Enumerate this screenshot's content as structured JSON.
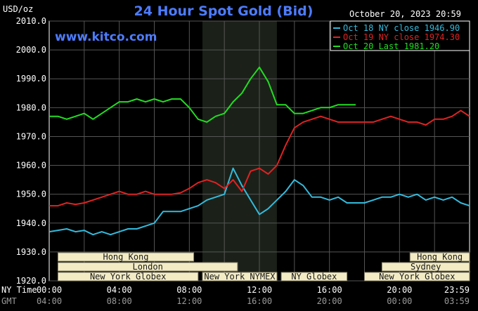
{
  "chart_data": {
    "type": "line",
    "title": "24 Hour Spot Gold (Bid)",
    "site": "www.kitco.com",
    "unit_label": "USD/oz",
    "date_label": "October 20, 2023 20:59",
    "ylim": [
      1920,
      2010
    ],
    "y_ticks": [
      "1920.0",
      "1930.0",
      "1940.0",
      "1950.0",
      "1960.0",
      "1970.0",
      "1980.0",
      "1990.0",
      "2000.0",
      "2010.0"
    ],
    "x_ticks_ny": [
      "00:00",
      "04:00",
      "08:00",
      "12:00",
      "16:00",
      "20:00",
      "23:59"
    ],
    "x_ticks_gmt": [
      "04:00",
      "08:00",
      "12:00",
      "16:00",
      "20:00",
      "00:00",
      "03:59"
    ],
    "row_label_ny": "NY Time",
    "row_label_gmt": "GMT",
    "shaded_region_hours": [
      8.75,
      13.0
    ],
    "markets": [
      {
        "name": "Hong Kong",
        "start": 0.5,
        "end": 8.25,
        "row": 0
      },
      {
        "name": "Hong Kong",
        "start": 20.6,
        "end": 24,
        "row": 0
      },
      {
        "name": "London",
        "start": 0.5,
        "end": 10.75,
        "row": 1
      },
      {
        "name": "Sydney",
        "start": 19.0,
        "end": 24,
        "row": 1
      },
      {
        "name": "New York Globex",
        "start": 0.5,
        "end": 8.5,
        "row": 2
      },
      {
        "name": "New York NYMEX",
        "start": 8.75,
        "end": 13.0,
        "row": 2
      },
      {
        "name": "NY Globex",
        "start": 13.25,
        "end": 17.0,
        "row": 2
      },
      {
        "name": "New York Globex",
        "start": 18.0,
        "end": 24,
        "row": 2
      }
    ],
    "series": [
      {
        "name": "Oct 18 NY close 1946.90",
        "color": "#33bbdd",
        "x": [
          0,
          0.5,
          1,
          1.5,
          2,
          2.5,
          3,
          3.5,
          4,
          4.5,
          5,
          5.5,
          6,
          6.5,
          7,
          7.5,
          8,
          8.5,
          9,
          9.5,
          10,
          10.5,
          11,
          11.5,
          12,
          12.5,
          13,
          13.5,
          14,
          14.5,
          15,
          15.5,
          16,
          16.5,
          17,
          17.5,
          18,
          18.5,
          19,
          19.5,
          20,
          20.5,
          21,
          21.5,
          22,
          22.5,
          23,
          23.5,
          24
        ],
        "y": [
          1937,
          1937.5,
          1938,
          1937,
          1937.5,
          1936,
          1937,
          1936,
          1937,
          1938,
          1938,
          1939,
          1940,
          1944,
          1944,
          1944,
          1945,
          1946,
          1948,
          1949,
          1950,
          1959,
          1953,
          1948,
          1943,
          1945,
          1948,
          1951,
          1955,
          1953,
          1949,
          1949,
          1948,
          1949,
          1947,
          1947,
          1947,
          1948,
          1949,
          1949,
          1950,
          1949,
          1950,
          1948,
          1949,
          1948,
          1949,
          1947,
          1946
        ]
      },
      {
        "name": "Oct 19 NY close 1974.30",
        "color": "#e02222",
        "x": [
          0,
          0.5,
          1,
          1.5,
          2,
          2.5,
          3,
          3.5,
          4,
          4.5,
          5,
          5.5,
          6,
          6.5,
          7,
          7.5,
          8,
          8.5,
          9,
          9.5,
          10,
          10.5,
          11,
          11.5,
          12,
          12.5,
          13,
          13.5,
          14,
          14.5,
          15,
          15.5,
          16,
          16.5,
          17,
          17.5,
          18,
          18.5,
          19,
          19.5,
          20,
          20.5,
          21,
          21.5,
          22,
          22.5,
          23,
          23.5,
          24
        ],
        "y": [
          1946,
          1946,
          1947,
          1946.5,
          1947,
          1948,
          1949,
          1950,
          1951,
          1950,
          1950,
          1951,
          1950,
          1950,
          1950,
          1950.5,
          1952,
          1954,
          1955,
          1954,
          1952,
          1955,
          1951,
          1958,
          1959,
          1957,
          1960,
          1967,
          1973,
          1975,
          1976,
          1977,
          1976,
          1975,
          1975,
          1975,
          1975,
          1975,
          1976,
          1977,
          1976,
          1975,
          1975,
          1974,
          1976,
          1976,
          1977,
          1979,
          1977
        ]
      },
      {
        "name": "Oct 20 Last 1981.20",
        "color": "#22dd22",
        "x": [
          0,
          0.5,
          1,
          1.5,
          2,
          2.5,
          3,
          3.5,
          4,
          4.5,
          5,
          5.5,
          6,
          6.5,
          7,
          7.5,
          8,
          8.5,
          9,
          9.5,
          10,
          10.5,
          11,
          11.5,
          12,
          12.5,
          13,
          13.5,
          14,
          14.5,
          15,
          15.5,
          16,
          16.5,
          17,
          17.5
        ],
        "y": [
          1977,
          1977,
          1976,
          1977,
          1978,
          1976,
          1978,
          1980,
          1982,
          1982,
          1983,
          1982,
          1983,
          1982,
          1983,
          1983,
          1980,
          1976,
          1975,
          1977,
          1978,
          1982,
          1985,
          1990,
          1994,
          1989,
          1981,
          1981,
          1978,
          1978,
          1979,
          1980,
          1980,
          1981,
          1981,
          1981
        ]
      }
    ]
  }
}
